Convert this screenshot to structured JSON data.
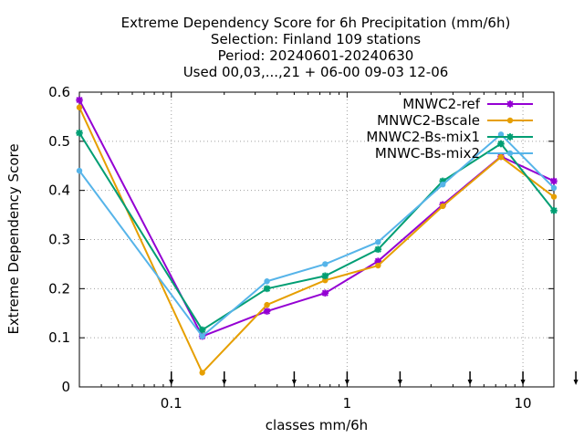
{
  "chart_data": {
    "type": "line",
    "title_lines": [
      "Extreme Dependency Score  for 6h Precipitation (mm/6h)",
      "Selection: Finland    109 stations",
      "Period: 20240601-20240630",
      "Used 00,03,...,21 + 06-00 09-03 12-06"
    ],
    "xlabel": "classes mm/6h",
    "ylabel": "Extreme Dependency Score",
    "x_scale": "log",
    "xlim": [
      0.03,
      15
    ],
    "ylim": [
      0,
      0.6
    ],
    "x_ticks": [
      0.1,
      1,
      10
    ],
    "x_tick_labels": [
      "0.1",
      "1",
      "10"
    ],
    "y_ticks": [
      0,
      0.1,
      0.2,
      0.3,
      0.4,
      0.5,
      0.6
    ],
    "y_tick_labels": [
      "0",
      "0.1",
      "0.2",
      "0.3",
      "0.4",
      "0.5",
      "0.6"
    ],
    "grid": true,
    "legend_position": "top-right",
    "threshold_arrows": [
      0.1,
      0.2,
      0.5,
      1,
      2,
      5,
      10,
      20
    ],
    "x": [
      0.03,
      0.15,
      0.35,
      0.75,
      1.5,
      3.5,
      7.5,
      15
    ],
    "series": [
      {
        "name": "MNWC2-ref",
        "color": "#9400d3",
        "marker": "star",
        "values": [
          0.584,
          0.103,
          0.154,
          0.191,
          0.256,
          0.371,
          0.469,
          0.419
        ]
      },
      {
        "name": "MNWC2-Bscale",
        "color": "#e69f00",
        "marker": "circle",
        "values": [
          0.569,
          0.029,
          0.167,
          0.217,
          0.247,
          0.368,
          0.468,
          0.387
        ]
      },
      {
        "name": "MNWC2-Bs-mix1",
        "color": "#009e73",
        "marker": "star",
        "values": [
          0.517,
          0.116,
          0.2,
          0.226,
          0.28,
          0.419,
          0.495,
          0.359
        ]
      },
      {
        "name": "MNWC-Bs-mix2",
        "color": "#56b4e9",
        "marker": "circle",
        "values": [
          0.44,
          0.103,
          0.215,
          0.25,
          0.295,
          0.412,
          0.514,
          0.405
        ]
      }
    ]
  }
}
